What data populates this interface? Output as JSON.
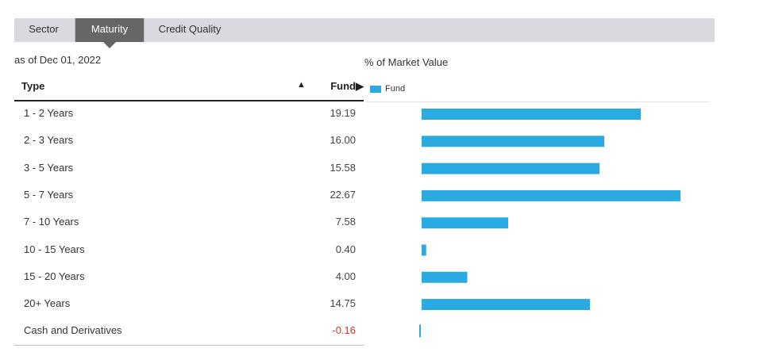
{
  "tabs": {
    "sector": "Sector",
    "maturity": "Maturity",
    "credit_quality": "Credit Quality"
  },
  "as_of": "as of Dec 01, 2022",
  "table": {
    "header_type": "Type",
    "sort_icon": "▲",
    "header_fund": "Fund▶"
  },
  "colors": {
    "bar": "#29abe2",
    "negative_value": "#e0312d",
    "active_tab": "#666666"
  },
  "chart_data": {
    "type": "bar",
    "orientation": "horizontal",
    "ylabel": "% of Market Value",
    "legend": "Fund",
    "legend_position": "top-left",
    "categories": [
      "1 - 2 Years",
      "2 - 3 Years",
      "3 - 5 Years",
      "5 - 7 Years",
      "7 - 10 Years",
      "10 - 15 Years",
      "15 - 20 Years",
      "20+ Years",
      "Cash and Derivatives"
    ],
    "display_values": [
      "19.19",
      "16.00",
      "15.58",
      "22.67",
      "7.58",
      "0.40",
      "4.00",
      "14.75",
      "-0.16"
    ],
    "series": [
      {
        "name": "Fund",
        "values": [
          19.19,
          16.0,
          15.58,
          22.67,
          7.58,
          0.4,
          4.0,
          14.75,
          -0.16
        ]
      }
    ]
  }
}
